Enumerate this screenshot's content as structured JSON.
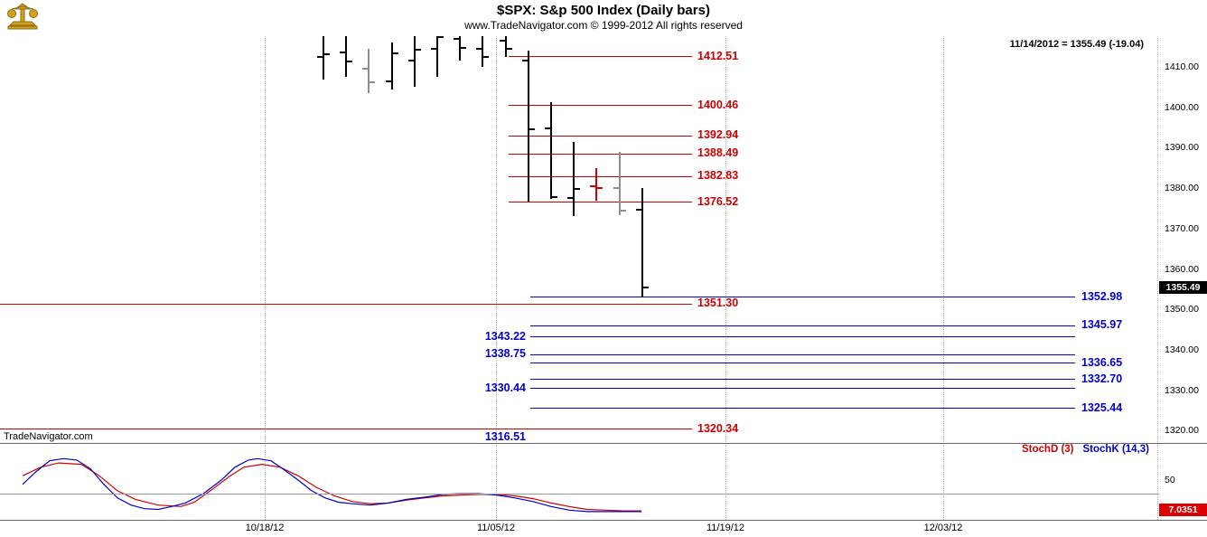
{
  "header": {
    "title": "$SPX:  S&p 500 Index  (Daily bars)",
    "subtitle": "www.TradeNavigator.com © 1999-2012 All rights reserved",
    "quote": "11/14/2012 = 1355.49 (-19.04)"
  },
  "watermark": "TradeNavigator.com",
  "colors": {
    "black": "#000000",
    "gray": "#8f8f8f",
    "red": "#cc0000",
    "blue": "#0000c8",
    "grid": "#b4b4b4"
  },
  "chart_data": {
    "type": "bar",
    "subtype": "ohlc-daily-bars",
    "title": "$SPX: S&p 500 Index (Daily bars)",
    "price_axis": {
      "min": 1320,
      "max": 1410,
      "step": 10,
      "labels": [
        "1410.00",
        "1400.00",
        "1390.00",
        "1380.00",
        "1370.00",
        "1360.00",
        "1350.00",
        "1340.00",
        "1330.00",
        "1320.00"
      ]
    },
    "last_price_box": "1355.49",
    "x_axis_labels": [
      "10/18/12",
      "11/05/12",
      "11/19/12",
      "12/03/12"
    ],
    "bars": [
      {
        "high": 1419.5,
        "low": 1406.8,
        "open": 1412.5,
        "close": 1413.2,
        "color": "black"
      },
      {
        "high": 1418.0,
        "low": 1407.5,
        "open": 1413.5,
        "close": 1411.3,
        "color": "black"
      },
      {
        "high": 1414.5,
        "low": 1403.5,
        "open": 1409.5,
        "close": 1406.3,
        "color": "gray"
      },
      {
        "high": 1416.0,
        "low": 1404.5,
        "open": 1406.5,
        "close": 1413.3,
        "color": "black"
      },
      {
        "high": 1417.5,
        "low": 1405.0,
        "open": 1411.5,
        "close": 1414.3,
        "color": "black"
      },
      {
        "high": 1420.5,
        "low": 1407.5,
        "open": 1414.5,
        "close": 1417.3,
        "color": "black"
      },
      {
        "high": 1419.5,
        "low": 1411.5,
        "open": 1417.0,
        "close": 1414.8,
        "color": "black"
      },
      {
        "high": 1417.5,
        "low": 1410.0,
        "open": 1414.5,
        "close": 1412.5,
        "color": "black"
      },
      {
        "high": 1419.0,
        "low": 1412.5,
        "open": 1416.5,
        "close": 1414.5,
        "color": "black"
      },
      {
        "high": 1414.0,
        "low": 1376.6,
        "open": 1411.5,
        "close": 1394.5,
        "color": "black"
      },
      {
        "high": 1401.2,
        "low": 1377.3,
        "open": 1394.8,
        "close": 1377.8,
        "color": "black"
      },
      {
        "high": 1391.5,
        "low": 1373.0,
        "open": 1377.5,
        "close": 1379.9,
        "color": "black"
      },
      {
        "high": 1385.0,
        "low": 1376.8,
        "open": 1380.5,
        "close": 1380.0,
        "color": "red"
      },
      {
        "high": 1389.0,
        "low": 1373.3,
        "open": 1380.1,
        "close": 1374.5,
        "color": "gray"
      },
      {
        "high": 1380.1,
        "low": 1353.0,
        "open": 1374.6,
        "close": 1355.5,
        "color": "black"
      }
    ],
    "red_levels": [
      {
        "label": "1412.51",
        "span": "partial"
      },
      {
        "label": "1400.46",
        "span": "partial"
      },
      {
        "label": "1392.94",
        "span": "partial"
      },
      {
        "label": "1388.49",
        "span": "partial"
      },
      {
        "label": "1382.83",
        "span": "partial"
      },
      {
        "label": "1376.52",
        "span": "partial"
      },
      {
        "label": "1351.30",
        "span": "full"
      },
      {
        "label": "1320.34",
        "span": "full"
      }
    ],
    "blue_levels": [
      {
        "label": "1352.98",
        "label_side": "right"
      },
      {
        "label": "1345.97",
        "label_side": "right"
      },
      {
        "label": "1343.22",
        "label_side": "left"
      },
      {
        "label": "1338.75",
        "label_side": "left"
      },
      {
        "label": "1336.65",
        "label_side": "right"
      },
      {
        "label": "1332.70",
        "label_side": "right"
      },
      {
        "label": "1330.44",
        "label_side": "left"
      },
      {
        "label": "1325.44",
        "label_side": "right"
      },
      {
        "label": "1316.51",
        "label_side": "left"
      }
    ],
    "indicator": {
      "name": "Stochastics",
      "legend": [
        {
          "text": "StochD (3)",
          "color": "red"
        },
        {
          "text": "StochK (14,3)",
          "color": "blue"
        }
      ],
      "axis_label": "50",
      "reference_level": 30,
      "last_value_box": "7.0351",
      "value_range": [
        0,
        100
      ],
      "stoch_d": [
        [
          25,
          56
        ],
        [
          45,
          68
        ],
        [
          65,
          74
        ],
        [
          90,
          72
        ],
        [
          110,
          56
        ],
        [
          130,
          35
        ],
        [
          150,
          23
        ],
        [
          175,
          15
        ],
        [
          200,
          13
        ],
        [
          215,
          19
        ],
        [
          235,
          37
        ],
        [
          255,
          56
        ],
        [
          270,
          68
        ],
        [
          290,
          72
        ],
        [
          310,
          68
        ],
        [
          330,
          56
        ],
        [
          350,
          40
        ],
        [
          370,
          28
        ],
        [
          390,
          20
        ],
        [
          410,
          17
        ],
        [
          430,
          18
        ],
        [
          450,
          22
        ],
        [
          470,
          25
        ],
        [
          490,
          28
        ],
        [
          510,
          29
        ],
        [
          530,
          30
        ],
        [
          550,
          30
        ],
        [
          570,
          28
        ],
        [
          590,
          24
        ],
        [
          610,
          18
        ],
        [
          630,
          13
        ],
        [
          650,
          9
        ],
        [
          670,
          8
        ],
        [
          690,
          7
        ],
        [
          710,
          7
        ]
      ],
      "stoch_k": [
        [
          25,
          44
        ],
        [
          40,
          62
        ],
        [
          55,
          77
        ],
        [
          70,
          80
        ],
        [
          85,
          78
        ],
        [
          100,
          66
        ],
        [
          115,
          44
        ],
        [
          130,
          25
        ],
        [
          145,
          15
        ],
        [
          160,
          10
        ],
        [
          175,
          9
        ],
        [
          190,
          13
        ],
        [
          205,
          18
        ],
        [
          225,
          31
        ],
        [
          245,
          50
        ],
        [
          260,
          68
        ],
        [
          275,
          78
        ],
        [
          285,
          80
        ],
        [
          300,
          77
        ],
        [
          315,
          64
        ],
        [
          330,
          50
        ],
        [
          345,
          35
        ],
        [
          360,
          25
        ],
        [
          375,
          19
        ],
        [
          390,
          17
        ],
        [
          410,
          15
        ],
        [
          430,
          18
        ],
        [
          450,
          23
        ],
        [
          470,
          26
        ],
        [
          490,
          30
        ],
        [
          510,
          31
        ],
        [
          530,
          31
        ],
        [
          550,
          29
        ],
        [
          570,
          25
        ],
        [
          590,
          20
        ],
        [
          610,
          13
        ],
        [
          630,
          8
        ],
        [
          650,
          6
        ],
        [
          670,
          6
        ],
        [
          690,
          6
        ],
        [
          710,
          6
        ]
      ]
    }
  }
}
